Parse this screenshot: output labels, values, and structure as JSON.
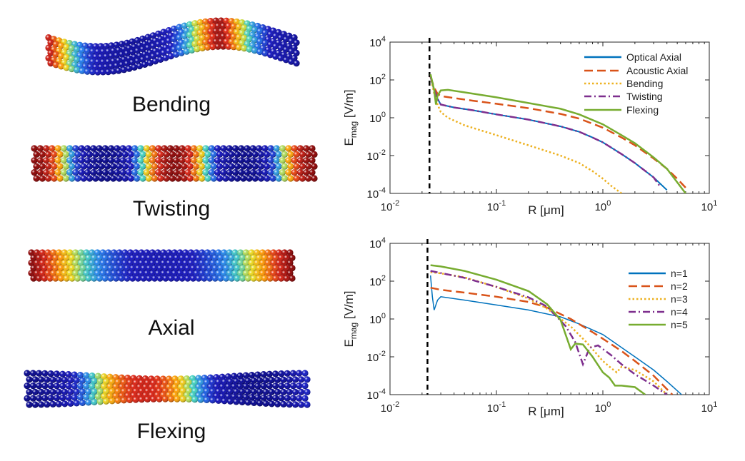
{
  "mode_labels": [
    "Bending",
    "Twisting",
    "Axial",
    "Flexing"
  ],
  "chart_data": [
    {
      "type": "line",
      "xscale": "log",
      "yscale": "log",
      "xlim": [
        0.01,
        10
      ],
      "ylim": [
        0.0001,
        10000
      ],
      "xlabel": "R [μm]",
      "ylabel": "E_mag [V/m]",
      "xticks": [
        "10-2",
        "10-1",
        "100",
        "101"
      ],
      "yticks": [
        "10-4",
        "10-2",
        "100",
        "102",
        "104"
      ],
      "vline_x": 0.0235,
      "legend_position": "top-right",
      "series": [
        {
          "name": "Optical Axial",
          "color": "#0072BD",
          "dash": "solid",
          "x": [
            0.024,
            0.026,
            0.028,
            0.03,
            0.04,
            0.06,
            0.1,
            0.2,
            0.4,
            0.6,
            0.8,
            1.0,
            1.5,
            2.0,
            3.0,
            4.0
          ],
          "y": [
            150,
            30,
            10,
            5,
            3.5,
            2.5,
            1.5,
            0.8,
            0.35,
            0.18,
            0.09,
            0.05,
            0.012,
            0.004,
            0.0007,
            0.00015
          ]
        },
        {
          "name": "Acoustic Axial",
          "color": "#D95319",
          "dash": "dashed",
          "x": [
            0.024,
            0.026,
            0.028,
            0.03,
            0.04,
            0.06,
            0.1,
            0.2,
            0.4,
            0.6,
            1.0,
            1.5,
            2.0,
            3.0,
            4.0,
            5.0,
            6.0
          ],
          "y": [
            150,
            40,
            18,
            14,
            11,
            8,
            5.5,
            3.2,
            1.6,
            0.9,
            0.3,
            0.09,
            0.035,
            0.007,
            0.002,
            0.0006,
            0.0002
          ]
        },
        {
          "name": "Bending",
          "color": "#EDB120",
          "dash": "dotted",
          "x": [
            0.024,
            0.026,
            0.028,
            0.03,
            0.035,
            0.05,
            0.1,
            0.2,
            0.4,
            0.6,
            0.8,
            1.0,
            1.2,
            1.5
          ],
          "y": [
            150,
            20,
            5,
            2,
            1.0,
            0.4,
            0.12,
            0.035,
            0.01,
            0.004,
            0.0015,
            0.0006,
            0.00025,
            0.0001
          ]
        },
        {
          "name": "Twisting",
          "color": "#7E2F8E",
          "dash": "dashdot",
          "x": [
            0.024,
            0.026,
            0.028,
            0.03,
            0.04,
            0.06,
            0.1,
            0.2,
            0.4,
            0.6,
            0.8,
            1.0,
            1.5,
            2.0,
            3.0,
            3.5
          ],
          "y": [
            150,
            30,
            10,
            5,
            3.5,
            2.5,
            1.5,
            0.8,
            0.35,
            0.18,
            0.09,
            0.05,
            0.012,
            0.004,
            0.0007,
            0.0002
          ]
        },
        {
          "name": "Flexing",
          "color": "#77AC30",
          "dash": "solid",
          "x": [
            0.024,
            0.026,
            0.027,
            0.028,
            0.03,
            0.035,
            0.05,
            0.1,
            0.2,
            0.4,
            0.6,
            1.0,
            1.5,
            2.0,
            3.0,
            4.0,
            6.0
          ],
          "y": [
            200,
            30,
            5,
            15,
            28,
            30,
            22,
            12,
            6,
            3,
            1.5,
            0.45,
            0.12,
            0.045,
            0.008,
            0.002,
            0.0001
          ]
        }
      ]
    },
    {
      "type": "line",
      "xscale": "log",
      "yscale": "log",
      "xlim": [
        0.01,
        10
      ],
      "ylim": [
        0.0001,
        10000
      ],
      "xlabel": "R [μm]",
      "ylabel": "E_mag [V/m]",
      "xticks": [
        "10-2",
        "10-1",
        "100",
        "101"
      ],
      "yticks": [
        "10-4",
        "10-2",
        "100",
        "102",
        "104"
      ],
      "vline_x": 0.0225,
      "legend_position": "top-right",
      "series": [
        {
          "name": "n=1",
          "color": "#0072BD",
          "dash": "solid",
          "x": [
            0.024,
            0.025,
            0.026,
            0.028,
            0.03,
            0.05,
            0.1,
            0.2,
            0.4,
            0.6,
            1.0,
            2.0,
            3.0,
            4.0,
            5.5
          ],
          "y": [
            200,
            15,
            3,
            10,
            15,
            10,
            5.5,
            3,
            1.3,
            0.55,
            0.15,
            0.01,
            0.002,
            0.0005,
            0.0001
          ]
        },
        {
          "name": "n=2",
          "color": "#D95319",
          "dash": "dashed",
          "x": [
            0.024,
            0.03,
            0.05,
            0.1,
            0.2,
            0.3,
            0.5,
            0.8,
            1.0,
            1.5,
            2.0,
            3.0,
            4.5
          ],
          "y": [
            45,
            35,
            25,
            15,
            8,
            4,
            1.0,
            0.2,
            0.09,
            0.02,
            0.006,
            0.001,
            0.0001
          ]
        },
        {
          "name": "n=3",
          "color": "#EDB120",
          "dash": "dotted",
          "x": [
            0.024,
            0.03,
            0.05,
            0.1,
            0.2,
            0.3,
            0.5,
            0.7,
            1.0,
            1.2,
            1.35,
            1.5,
            2.0,
            3.0,
            4.0
          ],
          "y": [
            300,
            260,
            160,
            50,
            12,
            3.5,
            0.4,
            0.06,
            0.006,
            0.0025,
            0.0015,
            0.003,
            0.002,
            0.0005,
            0.0001
          ]
        },
        {
          "name": "n=4",
          "color": "#7E2F8E",
          "dash": "dashdot",
          "x": [
            0.024,
            0.03,
            0.05,
            0.1,
            0.2,
            0.3,
            0.45,
            0.55,
            0.65,
            0.75,
            0.9,
            1.2,
            1.5,
            2.0,
            3.0,
            4.0
          ],
          "y": [
            350,
            270,
            150,
            50,
            14,
            4.5,
            0.4,
            0.06,
            0.004,
            0.03,
            0.04,
            0.012,
            0.004,
            0.0012,
            0.0003,
            0.0001
          ]
        },
        {
          "name": "n=5",
          "color": "#77AC30",
          "dash": "solid",
          "x": [
            0.024,
            0.03,
            0.05,
            0.1,
            0.2,
            0.3,
            0.4,
            0.5,
            0.55,
            0.65,
            0.8,
            1.0,
            1.15,
            1.3,
            1.5,
            2.0,
            2.5
          ],
          "y": [
            700,
            600,
            350,
            120,
            30,
            6,
            0.9,
            0.025,
            0.05,
            0.045,
            0.01,
            0.0015,
            0.0008,
            0.0003,
            0.0003,
            0.00025,
            0.0001
          ]
        }
      ]
    }
  ]
}
